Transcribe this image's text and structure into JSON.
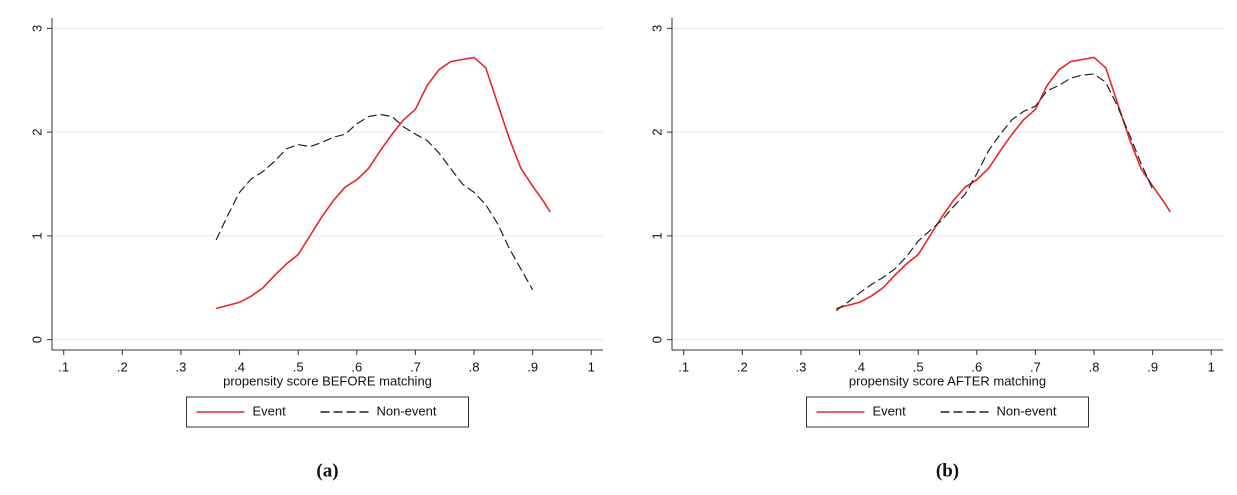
{
  "chart_data": [
    {
      "type": "line",
      "caption": "(a)",
      "x_label": "propensity score BEFORE matching",
      "x": [
        0.36,
        0.38,
        0.4,
        0.42,
        0.44,
        0.46,
        0.48,
        0.5,
        0.52,
        0.54,
        0.56,
        0.58,
        0.6,
        0.62,
        0.64,
        0.66,
        0.68,
        0.7,
        0.72,
        0.74,
        0.76,
        0.78,
        0.8,
        0.82,
        0.84,
        0.86,
        0.88,
        0.9,
        0.92,
        0.93
      ],
      "series": [
        {
          "name": "Event",
          "color": "#e8262a",
          "line_style": "solid",
          "values": [
            0.3,
            0.33,
            0.36,
            0.42,
            0.5,
            0.62,
            0.73,
            0.82,
            1.0,
            1.18,
            1.34,
            1.47,
            1.54,
            1.65,
            1.82,
            1.98,
            2.12,
            2.22,
            2.45,
            2.6,
            2.68,
            2.7,
            2.72,
            2.62,
            2.28,
            1.94,
            1.65,
            1.48,
            1.32,
            1.23
          ]
        },
        {
          "name": "Non-event",
          "color": "#222222",
          "line_style": "dashed",
          "values": [
            0.96,
            1.2,
            1.42,
            1.55,
            1.62,
            1.72,
            1.84,
            1.88,
            1.86,
            1.9,
            1.95,
            1.98,
            2.08,
            2.15,
            2.17,
            2.15,
            2.05,
            1.98,
            1.92,
            1.8,
            1.65,
            1.5,
            1.42,
            1.3,
            1.12,
            0.88,
            0.68,
            0.48,
            null,
            null
          ]
        }
      ],
      "xlim": [
        0.08,
        1.02
      ],
      "ylim": [
        -0.1,
        3.1
      ],
      "xticks": [
        {
          "value": 0.1,
          "label": ".1"
        },
        {
          "value": 0.2,
          "label": ".2"
        },
        {
          "value": 0.3,
          "label": ".3"
        },
        {
          "value": 0.4,
          "label": ".4"
        },
        {
          "value": 0.5,
          "label": ".5"
        },
        {
          "value": 0.6,
          "label": ".6"
        },
        {
          "value": 0.7,
          "label": ".7"
        },
        {
          "value": 0.8,
          "label": ".8"
        },
        {
          "value": 0.9,
          "label": ".9"
        },
        1
      ],
      "yticks": [
        0,
        1,
        2,
        3
      ],
      "grid": true
    },
    {
      "type": "line",
      "caption": "(b)",
      "x_label": "propensity score AFTER matching",
      "x": [
        0.36,
        0.38,
        0.4,
        0.42,
        0.44,
        0.46,
        0.48,
        0.5,
        0.52,
        0.54,
        0.56,
        0.58,
        0.6,
        0.62,
        0.64,
        0.66,
        0.68,
        0.7,
        0.72,
        0.74,
        0.76,
        0.78,
        0.8,
        0.82,
        0.84,
        0.86,
        0.88,
        0.9,
        0.92,
        0.93
      ],
      "series": [
        {
          "name": "Event",
          "color": "#e8262a",
          "line_style": "solid",
          "values": [
            0.3,
            0.33,
            0.36,
            0.42,
            0.5,
            0.62,
            0.73,
            0.82,
            1.0,
            1.18,
            1.34,
            1.47,
            1.54,
            1.65,
            1.82,
            1.98,
            2.12,
            2.22,
            2.45,
            2.6,
            2.68,
            2.7,
            2.72,
            2.62,
            2.28,
            1.94,
            1.65,
            1.48,
            1.32,
            1.23
          ]
        },
        {
          "name": "Non-event",
          "color": "#222222",
          "line_style": "dashed",
          "values": [
            0.28,
            0.36,
            0.45,
            0.53,
            0.6,
            0.68,
            0.8,
            0.95,
            1.05,
            1.15,
            1.28,
            1.4,
            1.6,
            1.82,
            1.98,
            2.12,
            2.2,
            2.25,
            2.4,
            2.45,
            2.52,
            2.55,
            2.56,
            2.48,
            2.25,
            1.98,
            1.7,
            1.45,
            null,
            null
          ]
        }
      ],
      "xlim": [
        0.08,
        1.02
      ],
      "ylim": [
        -0.1,
        3.1
      ],
      "xticks": [
        {
          "value": 0.1,
          "label": ".1"
        },
        {
          "value": 0.2,
          "label": ".2"
        },
        {
          "value": 0.3,
          "label": ".3"
        },
        {
          "value": 0.4,
          "label": ".4"
        },
        {
          "value": 0.5,
          "label": ".5"
        },
        {
          "value": 0.6,
          "label": ".6"
        },
        {
          "value": 0.7,
          "label": ".7"
        },
        {
          "value": 0.8,
          "label": ".8"
        },
        {
          "value": 0.9,
          "label": ".9"
        },
        1
      ],
      "yticks": [
        0,
        1,
        2,
        3
      ],
      "grid": true
    }
  ]
}
